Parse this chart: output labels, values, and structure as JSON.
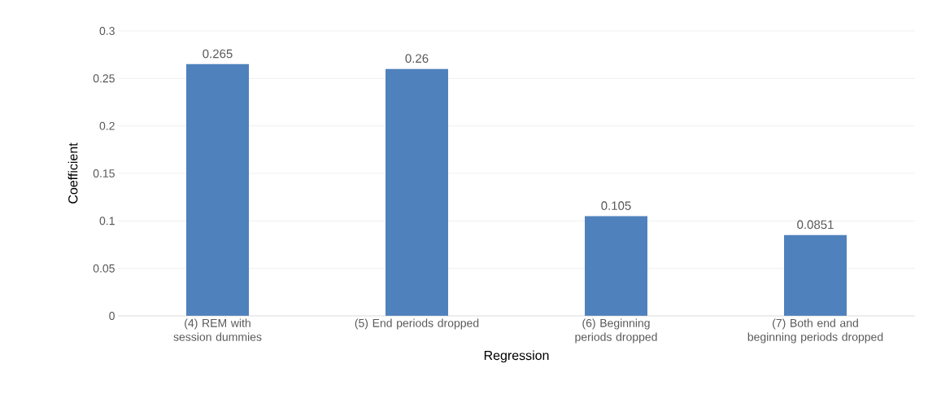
{
  "chart_data": {
    "type": "bar",
    "categories": [
      "(4) REM with session dummies",
      "(5) End periods dropped",
      "(6) Beginning periods dropped",
      "(7) Both end and beginning periods dropped"
    ],
    "values": [
      0.265,
      0.26,
      0.105,
      0.0851
    ],
    "color": "#4f81bd",
    "xlabel": "Regression",
    "ylabel": "Coefficient",
    "ylim": [
      0,
      0.3
    ],
    "yticks": [
      0,
      0.05,
      0.1,
      0.15,
      0.2,
      0.25,
      0.3
    ],
    "grid": "y",
    "data_labels": true
  }
}
